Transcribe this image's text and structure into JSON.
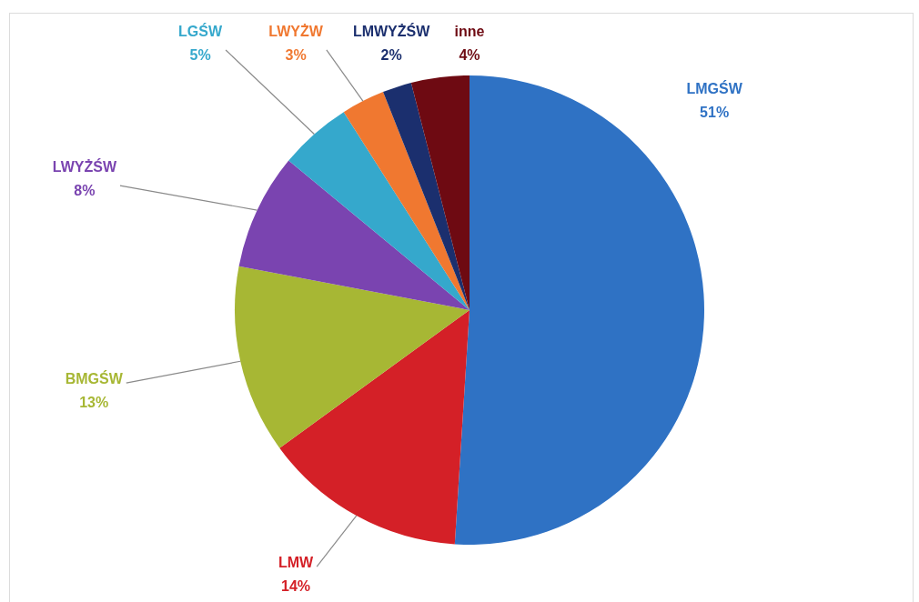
{
  "chart_data": {
    "type": "pie",
    "categories": [
      "LMGŚW",
      "LMW",
      "BMGŚW",
      "LWYŻŚW",
      "LGŚW",
      "LWYŻW",
      "LMWYŻŚW",
      "inne"
    ],
    "values": [
      51,
      14,
      13,
      8,
      5,
      3,
      2,
      4
    ],
    "colors": [
      "#2f72c4",
      "#d42027",
      "#a7b734",
      "#7a44b0",
      "#35a8cc",
      "#f07830",
      "#1b2f6e",
      "#6e0a12"
    ],
    "value_labels": [
      "51%",
      "14%",
      "13%",
      "8%",
      "5%",
      "3%",
      "2%",
      "4%"
    ]
  }
}
